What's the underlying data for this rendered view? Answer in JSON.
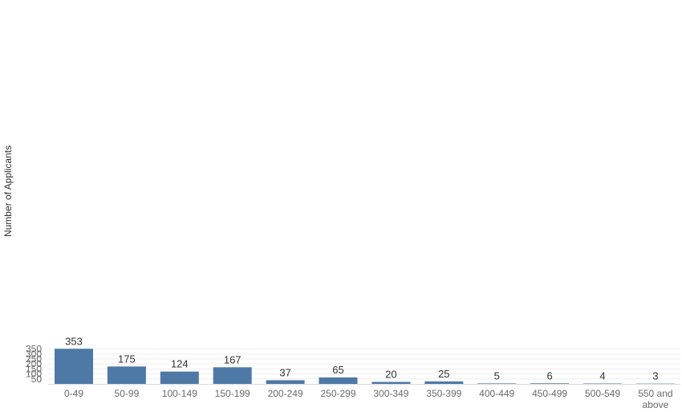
{
  "chart_data": {
    "type": "bar",
    "categories": [
      "0-49",
      "50-99",
      "100-149",
      "150-199",
      "200-249",
      "250-299",
      "300-349",
      "350-399",
      "400-449",
      "450-499",
      "500-549",
      "550 and above"
    ],
    "values": [
      353,
      175,
      124,
      167,
      37,
      65,
      20,
      25,
      5,
      6,
      4,
      3
    ],
    "ylabel": "Number of Applicants",
    "ylim": [
      0,
      350
    ],
    "yticks": [
      0,
      50,
      100,
      150,
      200,
      250,
      300,
      350
    ],
    "grid": true,
    "colors": {
      "bar": "#4e79a7"
    }
  }
}
